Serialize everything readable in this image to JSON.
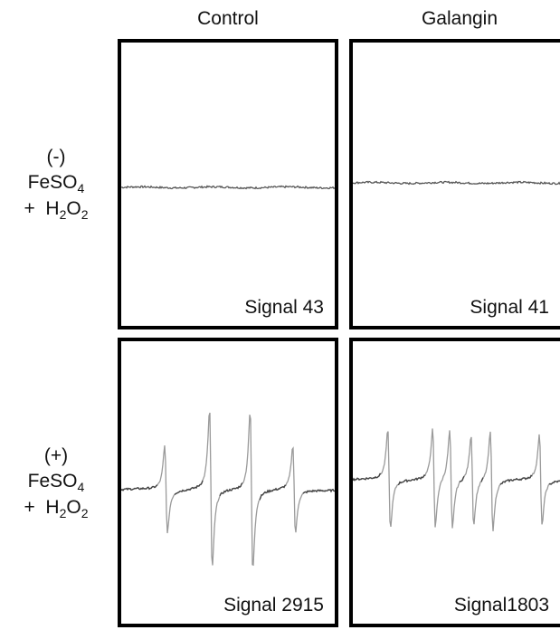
{
  "columns": [
    "Control",
    "Galangin"
  ],
  "rows": [
    {
      "sign": "(-)",
      "reagent1_base": "FeSO",
      "reagent1_sub": "4",
      "plus": "+",
      "reagent2_base": "H",
      "reagent2_sub1": "2",
      "reagent2_mid": "O",
      "reagent2_sub2": "2"
    },
    {
      "sign": "(+)",
      "reagent1_base": "FeSO",
      "reagent1_sub": "4",
      "plus": "+",
      "reagent2_base": "H",
      "reagent2_sub1": "2",
      "reagent2_mid": "O",
      "reagent2_sub2": "2"
    }
  ],
  "panels": {
    "control_neg": {
      "signal_label": "Signal 43"
    },
    "galangin_neg": {
      "signal_label": "Signal 41"
    },
    "control_pos": {
      "signal_label": "Signal 2915"
    },
    "galangin_pos": {
      "signal_label": "Signal1803"
    }
  },
  "chart_data": [
    {
      "type": "line",
      "condition": "Control, (-) FeSO4 + H2O2",
      "signal": 43,
      "baseline": 0,
      "peaks": [],
      "annotation": "Signal 43"
    },
    {
      "type": "line",
      "condition": "Galangin, (-) FeSO4 + H2O2",
      "signal": 41,
      "baseline": 0,
      "peaks": [],
      "annotation": "Signal 41"
    },
    {
      "type": "line",
      "condition": "Control, (+) FeSO4 + H2O2",
      "signal": 2915,
      "baseline": 0,
      "peaks": [
        {
          "pos": 0.21,
          "amp": 0.55,
          "dir": 1
        },
        {
          "pos": 0.42,
          "amp": 1.0,
          "dir": 1
        },
        {
          "pos": 0.61,
          "amp": 1.0,
          "dir": 1
        },
        {
          "pos": 0.81,
          "amp": 0.55,
          "dir": 1
        }
      ],
      "annotation": "Signal 2915"
    },
    {
      "type": "line",
      "condition": "Galangin, (+) FeSO4 + H2O2",
      "signal": 1803,
      "baseline": 0,
      "peaks": [
        {
          "pos": 0.17,
          "amp": 0.62,
          "dir": 1
        },
        {
          "pos": 0.38,
          "amp": 0.62,
          "dir": 1
        },
        {
          "pos": 0.46,
          "amp": 0.62,
          "dir": 1
        },
        {
          "pos": 0.56,
          "amp": 0.57,
          "dir": 1
        },
        {
          "pos": 0.65,
          "amp": 0.62,
          "dir": 1
        },
        {
          "pos": 0.88,
          "amp": 0.57,
          "dir": 1
        }
      ],
      "annotation": "Signal1803"
    }
  ]
}
